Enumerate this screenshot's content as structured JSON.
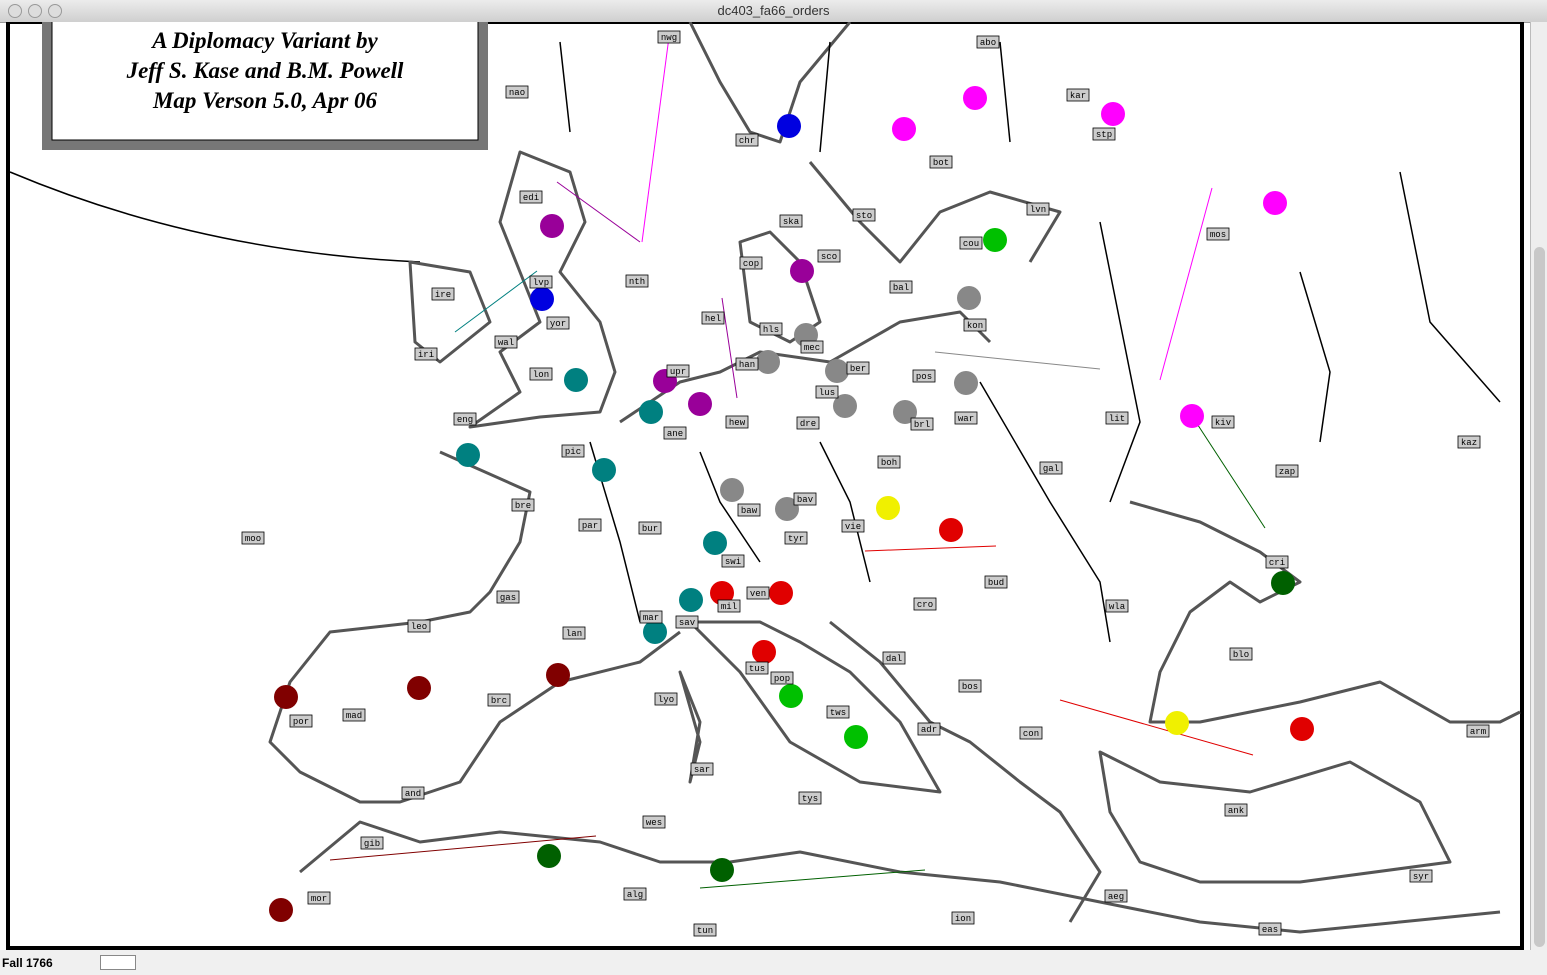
{
  "window": {
    "title": "dc403_fa66_orders"
  },
  "map": {
    "title_lines": [
      "A Diplomacy Variant by",
      "Jeff S. Kase and B.M. Powell",
      "Map Verson 5.0, Apr 06"
    ],
    "provinces": [
      "nwg",
      "abo",
      "kar",
      "nao",
      "chr",
      "stp",
      "bot",
      "edi",
      "sto",
      "lvn",
      "ska",
      "mos",
      "cou",
      "sco",
      "lvp",
      "cop",
      "nth",
      "ire",
      "bal",
      "kon",
      "yor",
      "hel",
      "hls",
      "iri",
      "wal",
      "mec",
      "han",
      "ber",
      "pos",
      "lon",
      "upr",
      "lus",
      "eng",
      "hew",
      "dre",
      "war",
      "brl",
      "lit",
      "kiv",
      "ane",
      "pic",
      "boh",
      "gal",
      "kaz",
      "zap",
      "bre",
      "baw",
      "bav",
      "par",
      "bur",
      "vie",
      "tyr",
      "moo",
      "swi",
      "cri",
      "bud",
      "gas",
      "ven",
      "mil",
      "cro",
      "wla",
      "mar",
      "sav",
      "leo",
      "lan",
      "blo",
      "dal",
      "pop",
      "tus",
      "bos",
      "mad",
      "por",
      "brc",
      "lyo",
      "tws",
      "adr",
      "con",
      "arm",
      "sar",
      "and",
      "tys",
      "ank",
      "wes",
      "gib",
      "syr",
      "mor",
      "aeg",
      "alg",
      "ion",
      "tun",
      "eas"
    ]
  },
  "status": {
    "season": "Fall 1766"
  }
}
